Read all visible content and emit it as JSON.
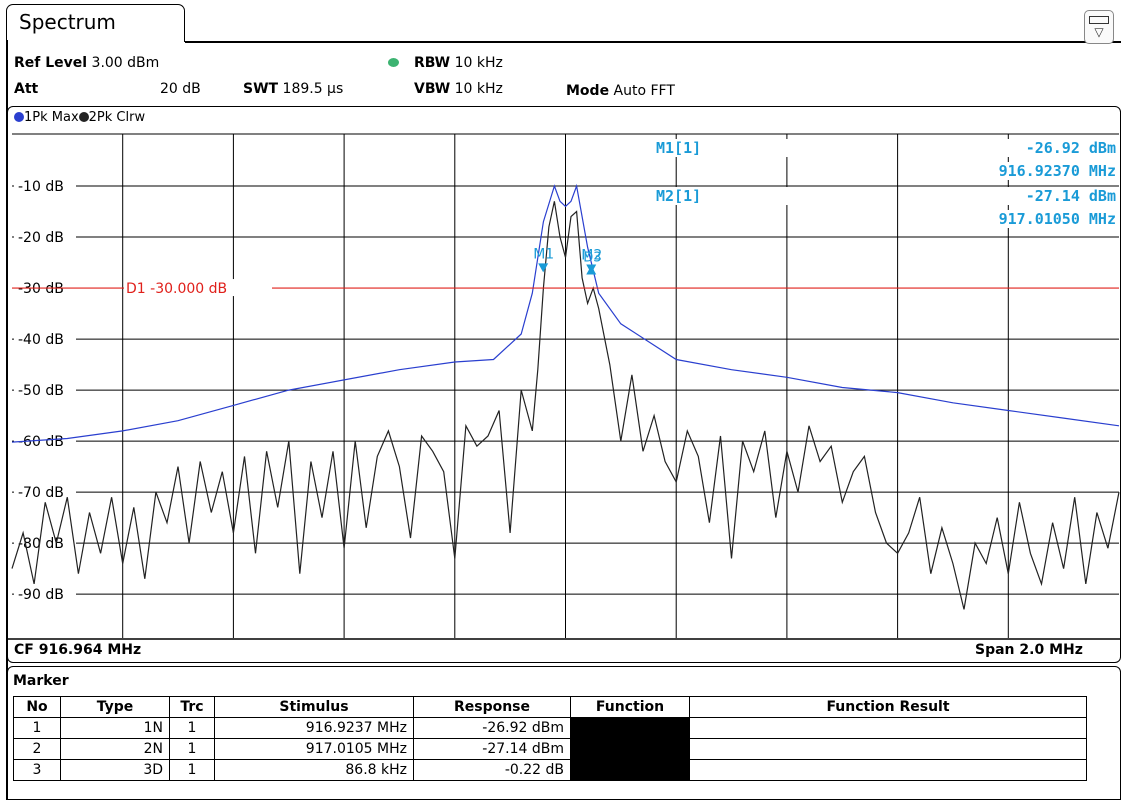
{
  "window": {
    "tab_title": "Spectrum"
  },
  "header": {
    "ref_level_label": "Ref Level",
    "ref_level_value": "3.00 dBm",
    "att_label": "Att",
    "att_value": "20 dB",
    "swt_label": "SWT",
    "swt_value": "189.5 µs",
    "rbw_label": "RBW",
    "rbw_value": "10 kHz",
    "vbw_label": "VBW",
    "vbw_value": "10 kHz",
    "mode_label": "Mode",
    "mode_value": "Auto FFT"
  },
  "traces_bar": {
    "trace1": "1Pk Max",
    "trace2": "2Pk Clrw",
    "trace1_color": "#2a3fcf",
    "trace2_color": "#222222"
  },
  "marker_readout": {
    "m1_label": "M1[1]",
    "m1_level": "-26.92 dBm",
    "m1_freq": "916.92370 MHz",
    "m2_label": "M2[1]",
    "m2_level": "-27.14 dBm",
    "m2_freq": "917.01050 MHz"
  },
  "footer": {
    "cf": "CF 916.964 MHz",
    "span": "Span 2.0 MHz"
  },
  "marker_table": {
    "title": "Marker",
    "columns": [
      "No",
      "Type",
      "Trc",
      "Stimulus",
      "Response",
      "Function",
      "Function Result"
    ],
    "rows": [
      {
        "no": "1",
        "type": "1N",
        "trc": "1",
        "stimulus": "916.9237 MHz",
        "response": "-26.92 dBm",
        "function": "",
        "result": ""
      },
      {
        "no": "2",
        "type": "2N",
        "trc": "1",
        "stimulus": "917.0105 MHz",
        "response": "-27.14 dBm",
        "function": "",
        "result": ""
      },
      {
        "no": "3",
        "type": "3D",
        "trc": "1",
        "stimulus": "86.8 kHz",
        "response": "-0.22 dB",
        "function": "",
        "result": ""
      }
    ]
  },
  "chart_data": {
    "type": "line",
    "xlabel": "",
    "ylabel": "",
    "xlim": [
      915.964,
      917.964
    ],
    "ylim": [
      -98.6,
      0.2
    ],
    "ytick_labels": [
      "-10 dB",
      "-20 dB",
      "-30 dB",
      "-40 dB",
      "-50 dB",
      "-60 dB",
      "-70 dB",
      "-80 dB",
      "-90 dB"
    ],
    "ytick_values": [
      -10,
      -20,
      -30,
      -40,
      -50,
      -60,
      -70,
      -80,
      -90
    ],
    "grid": true,
    "display_line": {
      "label": "D1  -30.000 dB",
      "value": -30,
      "color": "#e0201b"
    },
    "marker_line_color": "#1a9bd7",
    "markers": [
      {
        "label": "M1",
        "x": 916.9237,
        "y": -26.92
      },
      {
        "label": "M2",
        "x": 917.0105,
        "y": -27.14
      },
      {
        "label": "D3",
        "x": 917.0105,
        "y": -27.14
      }
    ],
    "series": [
      {
        "name": "1Pk Max",
        "color": "#2a3fcf",
        "x": [
          915.964,
          916.064,
          916.164,
          916.264,
          916.364,
          916.464,
          916.564,
          916.664,
          916.764,
          916.834,
          916.884,
          916.904,
          916.924,
          916.944,
          916.954,
          916.964,
          916.974,
          916.984,
          917.004,
          917.024,
          917.064,
          917.164,
          917.264,
          917.364,
          917.464,
          917.564,
          917.664,
          917.764,
          917.864,
          917.964
        ],
        "y": [
          -60.2,
          -59.5,
          -58,
          -56,
          -53,
          -50,
          -48,
          -46,
          -44.5,
          -44,
          -39,
          -31,
          -17,
          -10,
          -13,
          -14,
          -13,
          -10,
          -22,
          -31,
          -37,
          -44,
          -46,
          -47.5,
          -49.5,
          -50.5,
          -52.5,
          -54,
          -55.5,
          -57
        ]
      },
      {
        "name": "2Pk Clrw",
        "color": "#222222",
        "x": [
          915.964,
          915.984,
          916.004,
          916.024,
          916.044,
          916.064,
          916.084,
          916.104,
          916.124,
          916.144,
          916.164,
          916.184,
          916.204,
          916.224,
          916.244,
          916.264,
          916.284,
          916.304,
          916.324,
          916.344,
          916.364,
          916.384,
          916.404,
          916.424,
          916.444,
          916.464,
          916.484,
          916.504,
          916.524,
          916.544,
          916.564,
          916.584,
          916.604,
          916.624,
          916.644,
          916.664,
          916.684,
          916.704,
          916.724,
          916.744,
          916.764,
          916.784,
          916.804,
          916.824,
          916.844,
          916.864,
          916.884,
          916.904,
          916.914,
          916.924,
          916.934,
          916.944,
          916.954,
          916.964,
          916.974,
          916.984,
          916.994,
          917.004,
          917.014,
          917.024,
          917.044,
          917.064,
          917.084,
          917.104,
          917.124,
          917.144,
          917.164,
          917.184,
          917.204,
          917.224,
          917.244,
          917.264,
          917.284,
          917.304,
          917.324,
          917.344,
          917.364,
          917.384,
          917.404,
          917.424,
          917.444,
          917.464,
          917.484,
          917.504,
          917.524,
          917.544,
          917.564,
          917.584,
          917.604,
          917.624,
          917.644,
          917.664,
          917.684,
          917.704,
          917.724,
          917.744,
          917.764,
          917.784,
          917.804,
          917.824,
          917.844,
          917.864,
          917.884,
          917.904,
          917.924,
          917.944,
          917.964
        ],
        "y": [
          -85,
          -78,
          -88,
          -72,
          -80,
          -71,
          -86,
          -74,
          -82,
          -71,
          -84,
          -73,
          -87,
          -70,
          -76,
          -65,
          -80,
          -64,
          -74,
          -66,
          -78,
          -63,
          -82,
          -62,
          -73,
          -60,
          -86,
          -64,
          -75,
          -62,
          -81,
          -60,
          -77,
          -63,
          -58,
          -65,
          -79,
          -59,
          -62,
          -66,
          -83,
          -57,
          -61,
          -59,
          -54,
          -78,
          -50,
          -58,
          -46,
          -30,
          -18,
          -13,
          -20,
          -24,
          -16,
          -15,
          -28,
          -33,
          -30,
          -34,
          -45,
          -60,
          -47,
          -62,
          -55,
          -64,
          -68,
          -58,
          -63,
          -76,
          -59,
          -83,
          -60,
          -66,
          -58,
          -75,
          -62,
          -70,
          -57,
          -64,
          -61,
          -72,
          -66,
          -63,
          -74,
          -80,
          -82,
          -78,
          -71,
          -86,
          -77,
          -84,
          -93,
          -80,
          -84,
          -75,
          -86,
          -72,
          -82,
          -88,
          -76,
          -85,
          -71,
          -88,
          -74,
          -81,
          -70
        ]
      }
    ]
  }
}
